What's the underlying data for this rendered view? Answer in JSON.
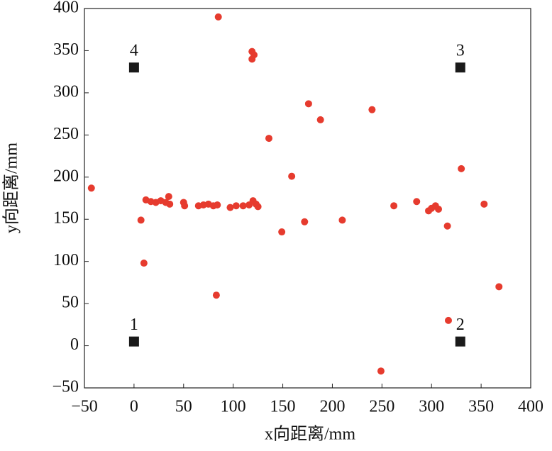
{
  "chart_data": {
    "type": "scatter",
    "xlabel": "x向距离/mm",
    "ylabel": "y向距离/mm",
    "xlim": [
      -50,
      400
    ],
    "ylim": [
      -50,
      400
    ],
    "xticks": [
      {
        "value": -50,
        "label": "−50"
      },
      0,
      50,
      100,
      150,
      200,
      250,
      300,
      350,
      400
    ],
    "yticks": [
      {
        "value": -50,
        "label": "−50"
      },
      0,
      50,
      100,
      150,
      200,
      250,
      300,
      350,
      400
    ],
    "series": [
      {
        "color": "#e63b2e",
        "marker": "circle",
        "x": [
          -43,
          85,
          119,
          121,
          119,
          176,
          188,
          240,
          136,
          159,
          330,
          353,
          285,
          262,
          297,
          300,
          304,
          307,
          316,
          210,
          172,
          149,
          7,
          10,
          83,
          317,
          368,
          249,
          12,
          17,
          22,
          27,
          32,
          35,
          36,
          50,
          51,
          65,
          70,
          75,
          80,
          84,
          97,
          103,
          110,
          116,
          120,
          123,
          125
        ],
        "values": [
          187,
          390,
          349,
          345,
          340,
          287,
          268,
          280,
          246,
          201,
          210,
          168,
          171,
          166,
          160,
          163,
          166,
          162,
          142,
          149,
          147,
          135,
          149,
          98,
          60,
          30,
          70,
          -30,
          173,
          171,
          170,
          172,
          170,
          177,
          168,
          170,
          166,
          166,
          167,
          168,
          166,
          167,
          164,
          166,
          166,
          167,
          172,
          168,
          165
        ]
      },
      {
        "color": "#1a1a1a",
        "marker": "square",
        "x": [
          0,
          329,
          329,
          0
        ],
        "values": [
          5,
          5,
          330,
          330
        ],
        "point_labels": [
          "1",
          "2",
          "3",
          "4"
        ]
      }
    ]
  }
}
